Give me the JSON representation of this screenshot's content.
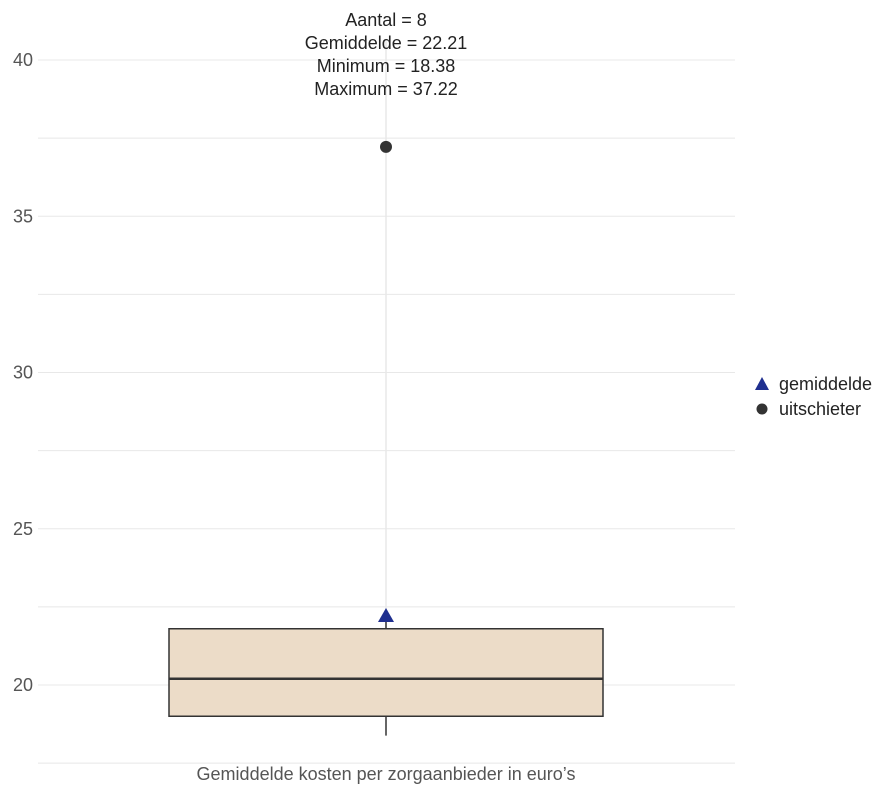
{
  "chart_data": {
    "type": "box",
    "xlabel": "Gemiddelde kosten per zorgaanbieder in euro’s",
    "ylabel": "",
    "ylim": [
      17.5,
      41.5
    ],
    "yticks": [
      20,
      25,
      30,
      35,
      40
    ],
    "grid": true,
    "stats_lines": [
      "Aantal = 8",
      "Gemiddelde = 22.21",
      "Minimum = 18.38",
      "Maximum = 37.22"
    ],
    "box": {
      "whisker_low": 18.38,
      "q1": 19.0,
      "median": 20.2,
      "q3": 21.8,
      "whisker_high": 21.8,
      "mean": 22.21,
      "outliers": [
        37.22
      ]
    },
    "legend": {
      "placement": "right",
      "entries": [
        {
          "label": "gemiddelde",
          "marker": "triangle",
          "color": "#1f2f8f"
        },
        {
          "label": "uitschieter",
          "marker": "circle",
          "color": "#333333"
        }
      ]
    },
    "colors": {
      "box_fill": "#ecdcc8",
      "box_stroke": "#333333",
      "median": "#333333",
      "whisker": "#333333",
      "mean_marker": "#1f2f8f",
      "outlier": "#333333",
      "grid": "#e8e8e8"
    }
  }
}
